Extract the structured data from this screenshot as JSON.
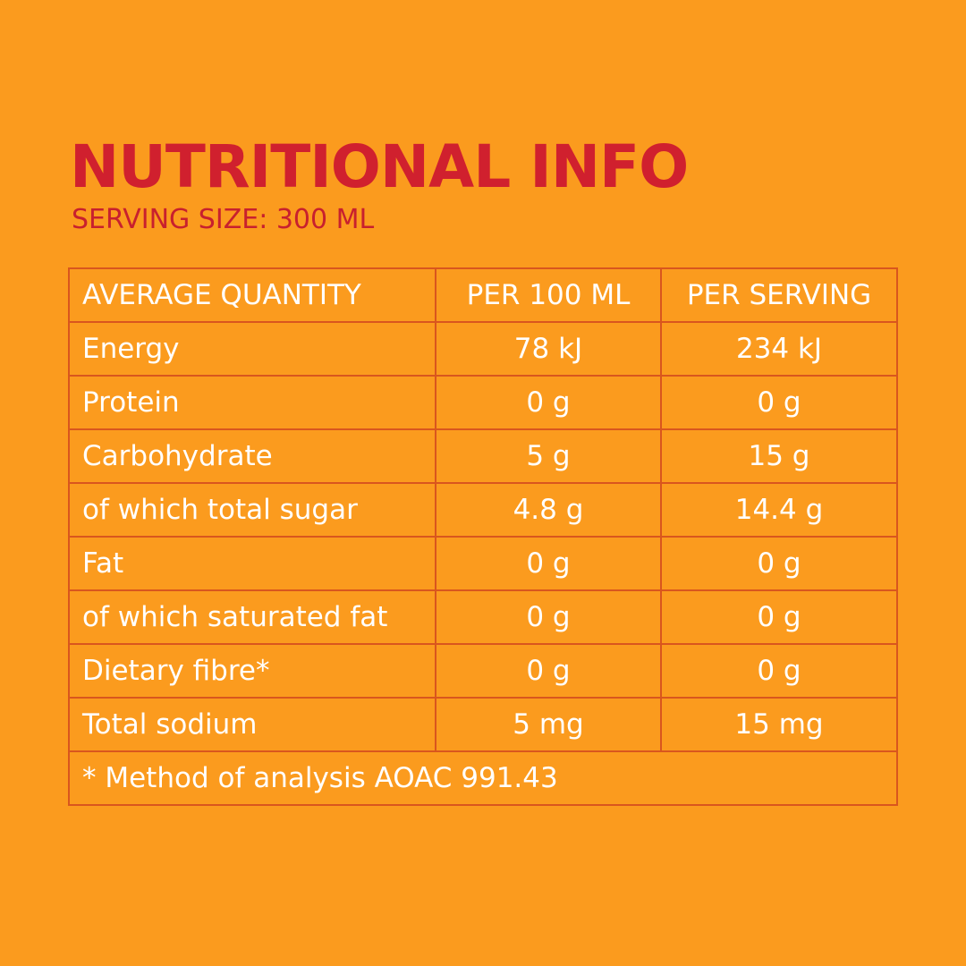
{
  "header": {
    "title": "NUTRITIONAL INFO",
    "subtitle": "SERVING SIZE: 300 ML"
  },
  "table": {
    "columns": [
      "AVERAGE QUANTITY",
      "PER 100 ML",
      "PER SERVING"
    ],
    "rows": [
      [
        "Energy",
        "78 kJ",
        "234 kJ"
      ],
      [
        "Protein",
        "0 g",
        "0 g"
      ],
      [
        "Carbohydrate",
        "5 g",
        "15 g"
      ],
      [
        "of which total sugar",
        "4.8 g",
        "14.4 g"
      ],
      [
        "Fat",
        "0 g",
        "0 g"
      ],
      [
        "of which saturated fat",
        "0 g",
        "0 g"
      ],
      [
        "Dietary fibre*",
        "0 g",
        "0 g"
      ],
      [
        "Total sodium",
        "5 mg",
        "15 mg"
      ]
    ],
    "footnote": "* Method of analysis AOAC 991.43"
  }
}
